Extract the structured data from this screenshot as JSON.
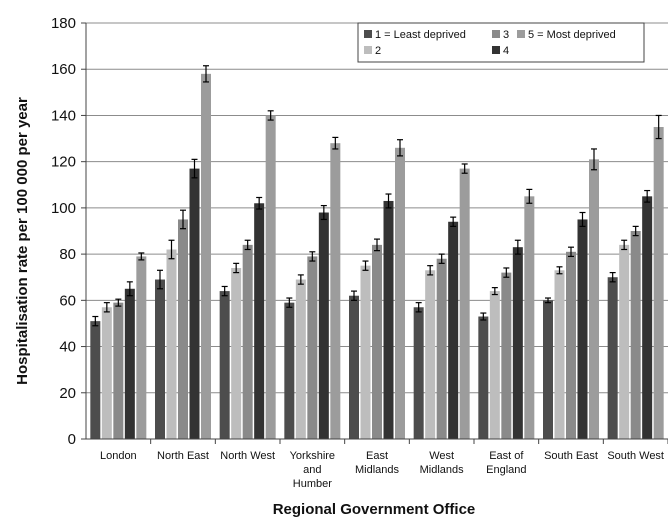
{
  "chart_data": {
    "type": "bar",
    "title": "",
    "xlabel": "Regional Government Office",
    "ylabel": "Hospitalisation rate per 100 000 per year",
    "ylim": [
      0,
      180
    ],
    "yticks": [
      0,
      20,
      40,
      60,
      80,
      100,
      120,
      140,
      160,
      180
    ],
    "grid": true,
    "legend_position": "top-right",
    "categories": [
      [
        "London"
      ],
      [
        "North East"
      ],
      [
        "North West"
      ],
      [
        "Yorkshire",
        "and",
        "Humber"
      ],
      [
        "East",
        "Midlands"
      ],
      [
        "West",
        "Midlands"
      ],
      [
        "East of",
        "England"
      ],
      [
        "South East"
      ],
      [
        "South West"
      ]
    ],
    "series": [
      {
        "name": "1 = Least deprived",
        "color": "#4d4d4d",
        "values": [
          51,
          69,
          64,
          59,
          62,
          57,
          53,
          60,
          70
        ],
        "errors": [
          2,
          4,
          2,
          2,
          2,
          2,
          1.5,
          1,
          2
        ]
      },
      {
        "name": "2",
        "color": "#bdbdbd",
        "values": [
          57,
          82,
          74,
          69,
          75,
          73,
          64,
          73,
          84
        ],
        "errors": [
          2,
          4,
          2,
          2,
          2,
          2,
          1.5,
          1.5,
          2
        ]
      },
      {
        "name": "3",
        "color": "#8a8a8a",
        "values": [
          59,
          95,
          84,
          79,
          84,
          78,
          72,
          81,
          90
        ],
        "errors": [
          1.5,
          4,
          2,
          2,
          2.5,
          2,
          2,
          2,
          2
        ]
      },
      {
        "name": "4",
        "color": "#333333",
        "values": [
          65,
          117,
          102,
          98,
          103,
          94,
          83,
          95,
          105
        ],
        "errors": [
          3,
          4,
          2.5,
          3,
          3,
          2,
          3,
          3,
          2.5
        ]
      },
      {
        "name": "5 = Most deprived",
        "color": "#9c9c9c",
        "values": [
          79,
          158,
          140,
          128,
          126,
          117,
          105,
          121,
          135
        ],
        "errors": [
          1.5,
          3.5,
          2,
          2.5,
          3.5,
          2,
          3,
          4.5,
          5
        ]
      }
    ]
  }
}
